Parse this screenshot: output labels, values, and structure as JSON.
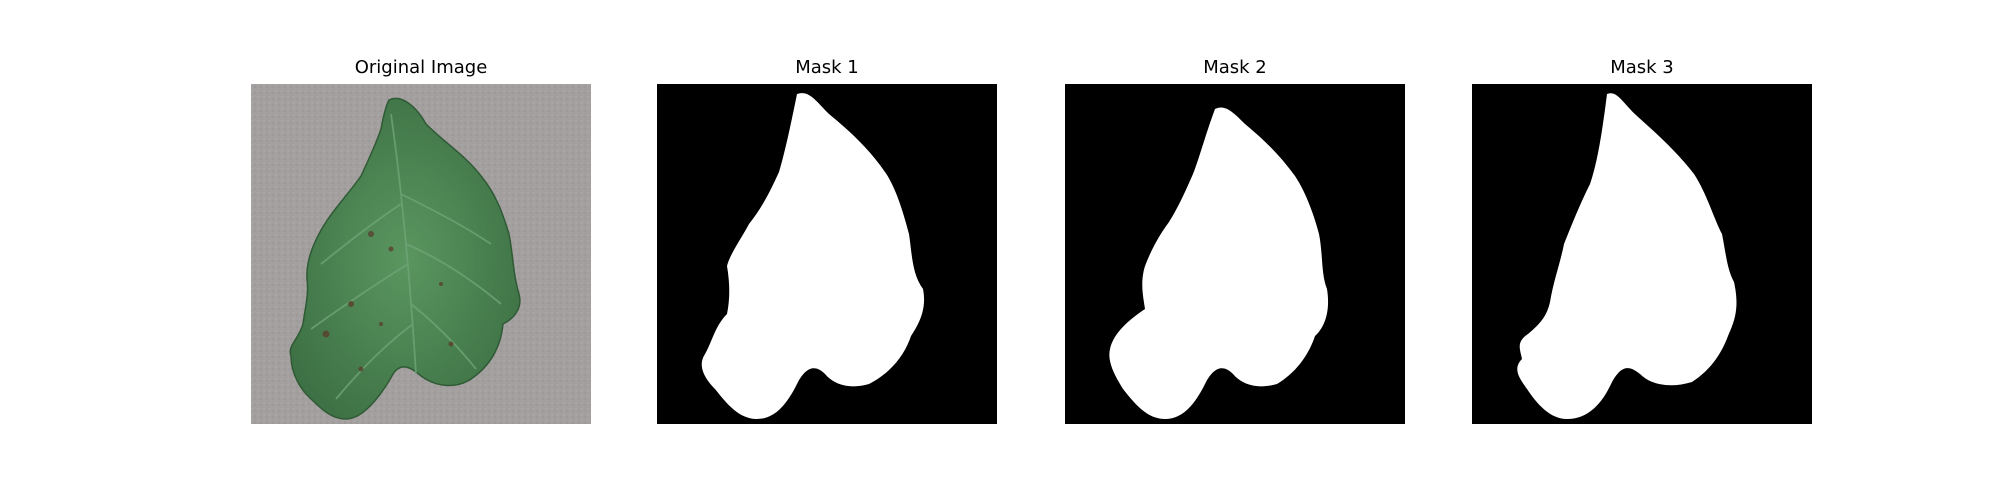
{
  "figure": {
    "panels": [
      {
        "title": "Original Image",
        "kind": "photo"
      },
      {
        "title": "Mask 1",
        "kind": "mask"
      },
      {
        "title": "Mask 2",
        "kind": "mask"
      },
      {
        "title": "Mask 3",
        "kind": "mask"
      }
    ],
    "colors": {
      "mask_background": "#000000",
      "mask_foreground": "#ffffff",
      "photo_background": "#a29f9f",
      "leaf_green": "#4c8450"
    }
  }
}
